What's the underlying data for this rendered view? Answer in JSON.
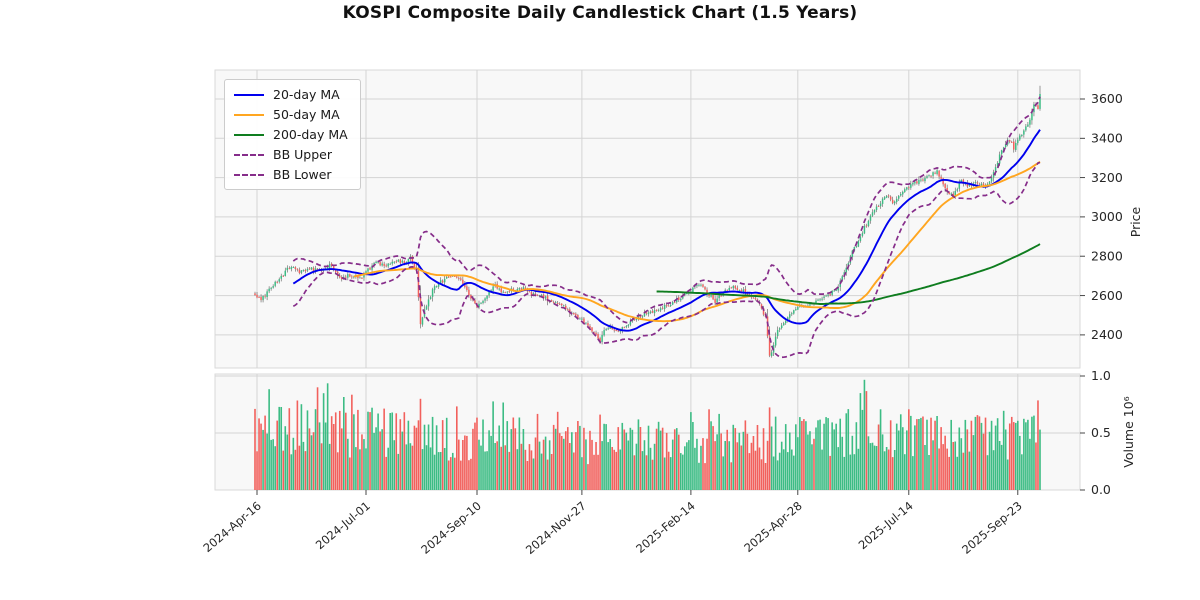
{
  "title": "KOSPI Composite Daily Candlestick Chart (1.5 Years)",
  "colors": {
    "up": "#3cbc84",
    "down": "#f2605c",
    "wick": "#5a5a5a",
    "ma20": "#0000ee",
    "ma50": "#ffa620",
    "ma200": "#0f7d1f",
    "bollinger": "#862d8a",
    "panel_bg": "#f8f8f8",
    "grid": "#d4d4d4",
    "tick_text": "#262626"
  },
  "legend": [
    {
      "label": "20-day MA",
      "color": "#0000ee",
      "dash": false
    },
    {
      "label": "50-day MA",
      "color": "#ffa620",
      "dash": false
    },
    {
      "label": "200-day MA",
      "color": "#0f7d1f",
      "dash": false
    },
    {
      "label": "BB Upper",
      "color": "#862d8a",
      "dash": true
    },
    {
      "label": "BB Lower",
      "color": "#862d8a",
      "dash": true
    }
  ],
  "price_axis": {
    "label": "Price",
    "ticks": [
      2400,
      2600,
      2800,
      3000,
      3200,
      3400,
      3600
    ],
    "ylim": [
      2230,
      3750
    ]
  },
  "volume_axis": {
    "label": "Volume  10⁶",
    "ticks": [
      "0.0",
      "0.5",
      "1.0"
    ],
    "ylim": [
      0,
      1.02
    ]
  },
  "x_axis": {
    "tick_labels": [
      "2024-Apr-16",
      "2024-Jul-01",
      "2024-Sep-10",
      "2024-Nov-27",
      "2025-Feb-14",
      "2025-Apr-28",
      "2025-Jul-14",
      "2025-Sep-23"
    ],
    "tick_days": [
      1,
      55,
      110,
      162,
      216,
      269,
      324,
      378
    ]
  },
  "chart_data": {
    "type": "candlestick+volume",
    "title": "KOSPI Composite Daily Candlestick Chart (1.5 Years)",
    "num_days": 390,
    "noise": 10,
    "overlays": [
      "20-day MA",
      "50-day MA",
      "200-day MA",
      "BB Upper (MA20+2σ)",
      "BB Lower (MA20-2σ)"
    ],
    "close_keyframes": [
      [
        0,
        2610
      ],
      [
        3,
        2575
      ],
      [
        8,
        2640
      ],
      [
        17,
        2745
      ],
      [
        23,
        2718
      ],
      [
        27,
        2735
      ],
      [
        33,
        2722
      ],
      [
        37,
        2760
      ],
      [
        42,
        2685
      ],
      [
        47,
        2705
      ],
      [
        52,
        2688
      ],
      [
        57,
        2740
      ],
      [
        60,
        2765
      ],
      [
        65,
        2758
      ],
      [
        70,
        2778
      ],
      [
        74,
        2768
      ],
      [
        77,
        2792
      ],
      [
        80,
        2722
      ],
      [
        82,
        2445
      ],
      [
        84,
        2530
      ],
      [
        89,
        2650
      ],
      [
        93,
        2675
      ],
      [
        97,
        2702
      ],
      [
        102,
        2682
      ],
      [
        105,
        2620
      ],
      [
        107,
        2578
      ],
      [
        110,
        2545
      ],
      [
        113,
        2578
      ],
      [
        116,
        2620
      ],
      [
        119,
        2652
      ],
      [
        123,
        2612
      ],
      [
        127,
        2630
      ],
      [
        133,
        2632
      ],
      [
        138,
        2602
      ],
      [
        142,
        2595
      ],
      [
        147,
        2572
      ],
      [
        150,
        2562
      ],
      [
        154,
        2538
      ],
      [
        157,
        2508
      ],
      [
        161,
        2480
      ],
      [
        163,
        2468
      ],
      [
        166,
        2428
      ],
      [
        168,
        2405
      ],
      [
        171,
        2368
      ],
      [
        173,
        2418
      ],
      [
        175,
        2442
      ],
      [
        178,
        2428
      ],
      [
        180,
        2418
      ],
      [
        185,
        2458
      ],
      [
        190,
        2492
      ],
      [
        195,
        2512
      ],
      [
        200,
        2532
      ],
      [
        205,
        2555
      ],
      [
        208,
        2572
      ],
      [
        212,
        2600
      ],
      [
        216,
        2628
      ],
      [
        219,
        2648
      ],
      [
        221,
        2658
      ],
      [
        224,
        2618
      ],
      [
        228,
        2572
      ],
      [
        232,
        2608
      ],
      [
        235,
        2645
      ],
      [
        238,
        2635
      ],
      [
        242,
        2622
      ],
      [
        246,
        2592
      ],
      [
        249,
        2562
      ],
      [
        251,
        2535
      ],
      [
        253,
        2482
      ],
      [
        255,
        2295
      ],
      [
        257,
        2338
      ],
      [
        259,
        2425
      ],
      [
        262,
        2462
      ],
      [
        265,
        2508
      ],
      [
        268,
        2532
      ],
      [
        270,
        2548
      ],
      [
        274,
        2552
      ],
      [
        277,
        2562
      ],
      [
        281,
        2588
      ],
      [
        284,
        2602
      ],
      [
        287,
        2622
      ],
      [
        289,
        2648
      ],
      [
        292,
        2718
      ],
      [
        295,
        2802
      ],
      [
        298,
        2858
      ],
      [
        300,
        2902
      ],
      [
        302,
        2948
      ],
      [
        304,
        2978
      ],
      [
        307,
        3032
      ],
      [
        309,
        3062
      ],
      [
        311,
        3092
      ],
      [
        313,
        3108
      ],
      [
        315,
        3088
      ],
      [
        317,
        3068
      ],
      [
        320,
        3112
      ],
      [
        322,
        3132
      ],
      [
        324,
        3152
      ],
      [
        327,
        3172
      ],
      [
        330,
        3188
      ],
      [
        333,
        3198
      ],
      [
        336,
        3218
      ],
      [
        338,
        3232
      ],
      [
        340,
        3192
      ],
      [
        342,
        3148
      ],
      [
        344,
        3122
      ],
      [
        346,
        3108
      ],
      [
        348,
        3148
      ],
      [
        350,
        3182
      ],
      [
        352,
        3168
      ],
      [
        354,
        3158
      ],
      [
        356,
        3168
      ],
      [
        358,
        3178
      ],
      [
        360,
        3162
      ],
      [
        362,
        3148
      ],
      [
        365,
        3202
      ],
      [
        367,
        3252
      ],
      [
        369,
        3312
      ],
      [
        371,
        3358
      ],
      [
        373,
        3402
      ],
      [
        375,
        3372
      ],
      [
        376,
        3348
      ],
      [
        378,
        3388
      ],
      [
        380,
        3422
      ],
      [
        382,
        3458
      ],
      [
        384,
        3492
      ],
      [
        386,
        3572
      ],
      [
        388,
        3548
      ],
      [
        389,
        3628
      ]
    ],
    "volume_envelope": [
      [
        0,
        0.5
      ],
      [
        20,
        0.55
      ],
      [
        45,
        0.52
      ],
      [
        80,
        0.47
      ],
      [
        120,
        0.46
      ],
      [
        160,
        0.4
      ],
      [
        200,
        0.42
      ],
      [
        250,
        0.42
      ],
      [
        290,
        0.5
      ],
      [
        320,
        0.46
      ],
      [
        389,
        0.47
      ]
    ],
    "volume_spikes": {
      "7": 0.88,
      "12": 0.72,
      "23": 0.74,
      "31": 0.9,
      "34": 0.84,
      "36": 0.93,
      "44": 0.8,
      "48": 0.82,
      "58": 0.72,
      "70": 0.66,
      "82": 0.8,
      "95": 0.62,
      "100": 0.72,
      "110": 0.62,
      "118": 0.77,
      "123": 0.77,
      "140": 0.68,
      "150": 0.7,
      "160": 0.62,
      "171": 0.66,
      "182": 0.6,
      "190": 0.62,
      "200": 0.58,
      "216": 0.68,
      "225": 0.7,
      "230": 0.66,
      "243": 0.62,
      "255": 0.72,
      "258": 0.64,
      "270": 0.64,
      "280": 0.62,
      "294": 0.7,
      "300": 0.85,
      "302": 0.95,
      "303": 0.88,
      "310": 0.72,
      "318": 0.6,
      "324": 0.72,
      "331": 0.64,
      "338": 0.66,
      "345": 0.63,
      "352": 0.6,
      "360": 0.58,
      "365": 0.62,
      "371": 0.68,
      "377": 0.6,
      "383": 0.62,
      "388": 0.78
    }
  }
}
